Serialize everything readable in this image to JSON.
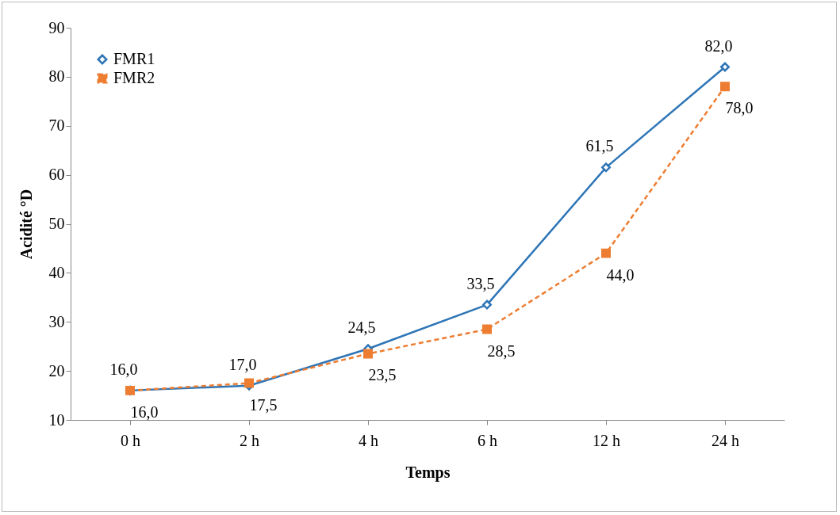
{
  "chart_data": {
    "type": "line",
    "xlabel": "Temps",
    "ylabel": "Acidité °D",
    "categories": [
      "0 h",
      "2 h",
      "4 h",
      "6 h",
      "12 h",
      "24 h"
    ],
    "series": [
      {
        "name": "FMR1",
        "color": "#2e75b6",
        "marker": "diamond",
        "line_style": "solid",
        "values": [
          16.0,
          17.0,
          24.5,
          33.5,
          61.5,
          82.0
        ],
        "value_labels": [
          "16,0",
          "17,0",
          "24,5",
          "33,5",
          "61,5",
          "82,0"
        ]
      },
      {
        "name": "FMR2",
        "color": "#ed7d31",
        "marker": "square",
        "line_style": "dashed",
        "values": [
          16.0,
          17.5,
          23.5,
          28.5,
          44.0,
          78.0
        ],
        "value_labels": [
          "16,0",
          "17,5",
          "23,5",
          "28,5",
          "44,0",
          "78,0"
        ]
      }
    ],
    "ylim": [
      10,
      90
    ],
    "yticks": [
      10,
      20,
      30,
      40,
      50,
      60,
      70,
      80,
      90
    ],
    "grid": false,
    "legend": "top left"
  }
}
